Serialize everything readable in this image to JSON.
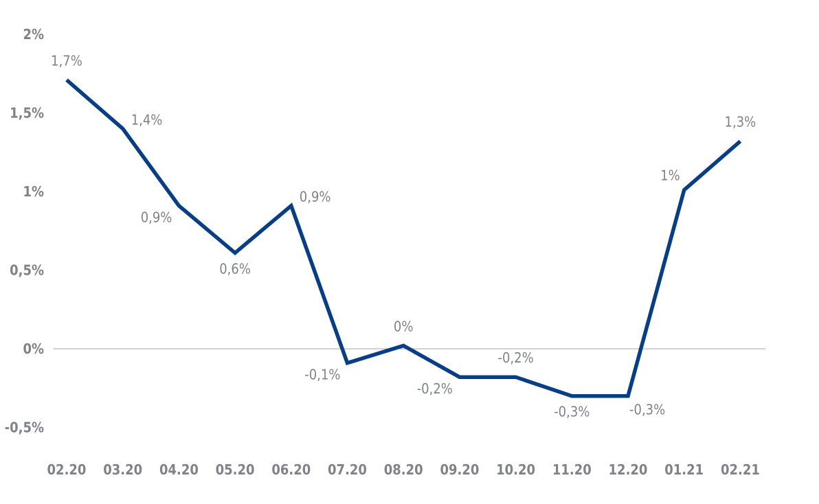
{
  "chart_data": {
    "type": "line",
    "title": "",
    "xlabel": "",
    "ylabel": "",
    "categories": [
      "02.20",
      "03.20",
      "04.20",
      "05.20",
      "06.20",
      "07.20",
      "08.20",
      "09.20",
      "10.20",
      "11.20",
      "12.20",
      "01.21",
      "02.21"
    ],
    "series": [
      {
        "values": [
          1.71,
          1.4,
          0.91,
          0.61,
          0.91,
          -0.09,
          0.02,
          -0.18,
          -0.18,
          -0.3,
          -0.3,
          1.01,
          1.32
        ],
        "data_labels": [
          "1,7%",
          "1,4%",
          "0,9%",
          "0,6%",
          "0,9%",
          "-0,1%",
          "0%",
          "-0,2%",
          "-0,2%",
          "-0,3%",
          "-0,3%",
          "1%",
          "1,3%"
        ],
        "label_positions": [
          "above",
          "above-right",
          "below-left",
          "below",
          "above-right",
          "below-left",
          "above",
          "below-left",
          "above",
          "below",
          "below-right",
          "above-left",
          "above"
        ]
      }
    ],
    "y_ticks": [
      {
        "value": 2,
        "label": "2%"
      },
      {
        "value": 1.5,
        "label": "1,5%"
      },
      {
        "value": 1,
        "label": "1%"
      },
      {
        "value": 0.5,
        "label": "0,5%"
      },
      {
        "value": 0,
        "label": "0%"
      },
      {
        "value": -0.5,
        "label": "-0,5%"
      }
    ],
    "ylim": [
      -0.5,
      2
    ],
    "grid": false,
    "zero_line": true,
    "legend": "none",
    "colors": {
      "line": "#063e8a",
      "zero_line": "#a6a6a6",
      "text": "#7f8289"
    }
  }
}
